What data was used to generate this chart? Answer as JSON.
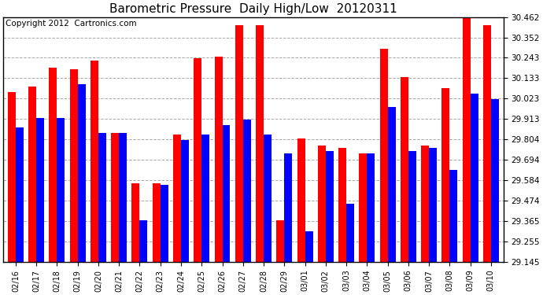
{
  "title": "Barometric Pressure  Daily High/Low  20120311",
  "copyright": "Copyright 2012  Cartronics.com",
  "dates": [
    "02/16",
    "02/17",
    "02/18",
    "02/19",
    "02/20",
    "02/21",
    "02/22",
    "02/23",
    "02/24",
    "02/25",
    "02/26",
    "02/27",
    "02/28",
    "02/29",
    "03/01",
    "03/02",
    "03/03",
    "03/04",
    "03/05",
    "03/06",
    "03/07",
    "03/08",
    "03/09",
    "03/10"
  ],
  "high": [
    30.06,
    30.09,
    30.19,
    30.18,
    30.23,
    29.84,
    29.57,
    29.57,
    29.83,
    30.24,
    30.25,
    30.42,
    30.42,
    29.37,
    29.81,
    29.77,
    29.76,
    29.73,
    30.29,
    30.14,
    29.77,
    30.08,
    30.46,
    30.42
  ],
  "low": [
    29.87,
    29.92,
    29.92,
    30.1,
    29.84,
    29.84,
    29.37,
    29.56,
    29.8,
    29.83,
    29.88,
    29.91,
    29.83,
    29.73,
    29.31,
    29.74,
    29.46,
    29.73,
    29.98,
    29.74,
    29.76,
    29.64,
    30.05,
    30.02
  ],
  "ymin": 29.145,
  "ymax": 30.462,
  "yticks": [
    29.145,
    29.255,
    29.365,
    29.474,
    29.584,
    29.694,
    29.804,
    29.913,
    30.023,
    30.133,
    30.243,
    30.352,
    30.462
  ],
  "ytick_labels": [
    "29.145",
    "29.255",
    "29.365",
    "29.474",
    "29.584",
    "29.694",
    "29.804",
    "29.913",
    "30.023",
    "30.133",
    "30.243",
    "30.352",
    "30.462"
  ],
  "bar_width": 0.38,
  "high_color": "#ff0000",
  "low_color": "#0000ff",
  "bg_color": "#ffffff",
  "grid_color": "#aaaaaa",
  "title_fontsize": 11,
  "copyright_fontsize": 7.5
}
